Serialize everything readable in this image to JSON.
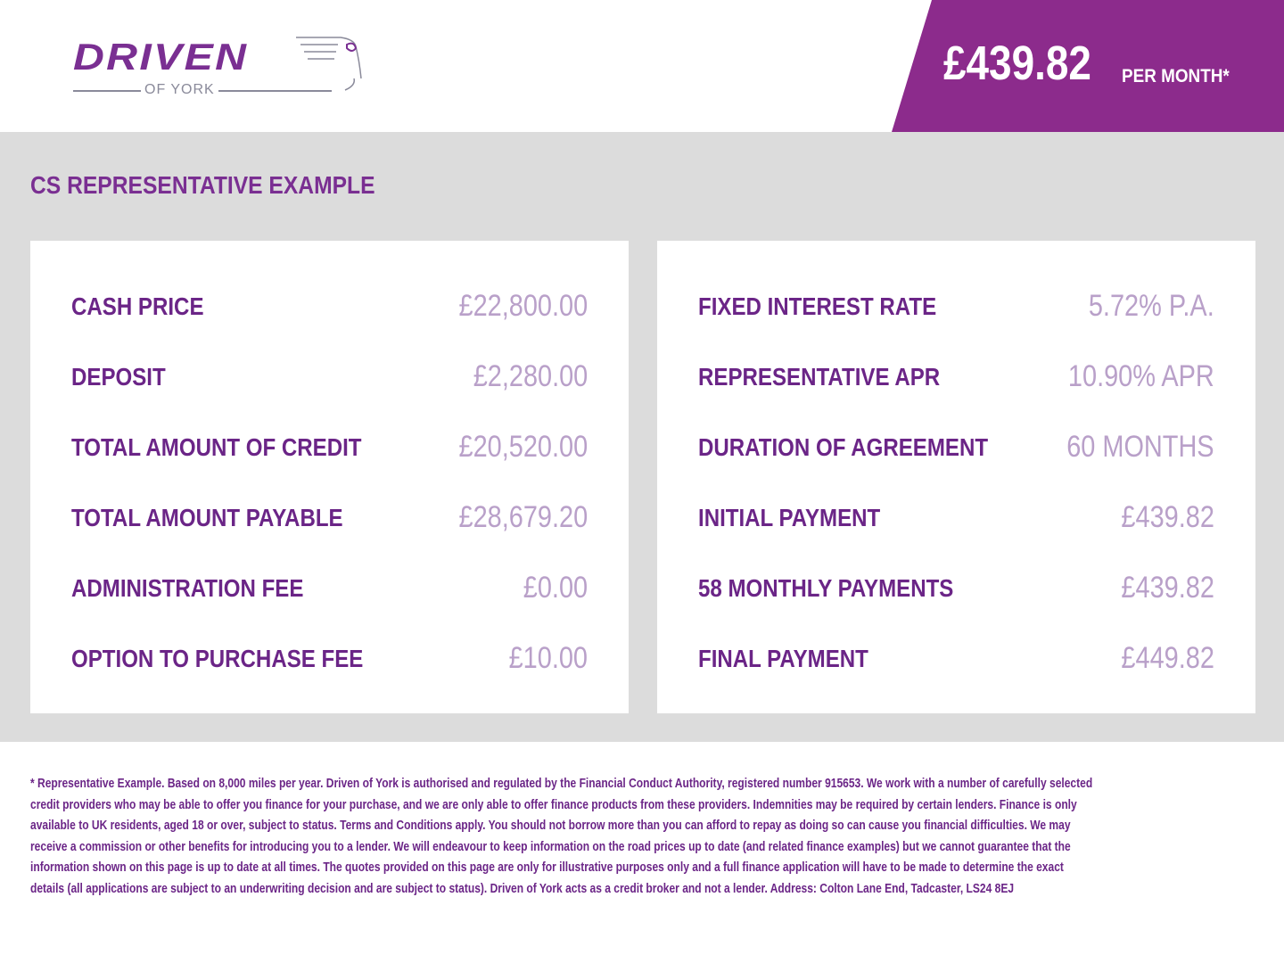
{
  "logo": {
    "word": "DRIVEN",
    "sub": "OF YORK"
  },
  "banner": {
    "price": "£439.82",
    "per": "PER MONTH*"
  },
  "section_title": "CS REPRESENTATIVE EXAMPLE",
  "colors": {
    "brand": "#8c2b8c",
    "label": "#6b2587",
    "value": "#b9a0c9",
    "background": "#dcdcdc"
  },
  "left": [
    {
      "label": "CASH PRICE",
      "value": "£22,800.00"
    },
    {
      "label": "DEPOSIT",
      "value": "£2,280.00"
    },
    {
      "label": "TOTAL AMOUNT OF CREDIT",
      "value": "£20,520.00"
    },
    {
      "label": "TOTAL AMOUNT PAYABLE",
      "value": "£28,679.20"
    },
    {
      "label": "ADMINISTRATION FEE",
      "value": "£0.00"
    },
    {
      "label": "OPTION TO PURCHASE FEE",
      "value": "£10.00"
    }
  ],
  "right": [
    {
      "label": "FIXED INTEREST RATE",
      "value": "5.72% P.A."
    },
    {
      "label": "REPRESENTATIVE APR",
      "value": "10.90% APR"
    },
    {
      "label": "DURATION OF AGREEMENT",
      "value": "60 MONTHS"
    },
    {
      "label": "INITIAL PAYMENT",
      "value": "£439.82"
    },
    {
      "label": "58 MONTHLY PAYMENTS",
      "value": "£439.82"
    },
    {
      "label": "FINAL PAYMENT",
      "value": "£449.82"
    }
  ],
  "footer": [
    "* Representative Example. Based on 8,000 miles per year. Driven of York is authorised and regulated by the Financial Conduct Authority, registered number 915653. We work with a number of carefully selected",
    "credit providers who may be able to offer you finance for your purchase, and we are only able to offer finance products from these providers. Indemnities may be required by certain lenders. Finance is only",
    "available to UK residents, aged 18 or over, subject to status. Terms and Conditions apply. You should not borrow more than you can afford to repay as doing so can cause you financial difficulties. We may",
    "receive a commission or other benefits for introducing you to a lender. We will endeavour to keep information on the road prices up to date (and related finance examples) but we cannot guarantee that the",
    "information shown on this page is up to date at all times. The quotes provided on this page are only for illustrative purposes only and a full finance application will have to be made to determine the exact",
    "details (all applications are subject to an underwriting decision and are subject to status). Driven of York acts as a credit broker and not a lender. Address: Colton Lane End, Tadcaster, LS24 8EJ"
  ]
}
